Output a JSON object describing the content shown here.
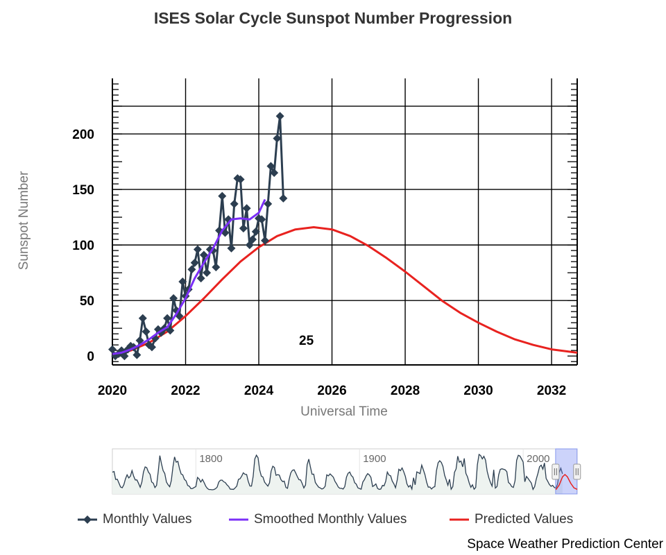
{
  "chart_data": {
    "type": "line",
    "title": "ISES Solar Cycle Sunspot Number Progression",
    "xlabel": "Universal Time",
    "ylabel": "Sunspot Number",
    "xlim": [
      2020,
      2032.7
    ],
    "ylim": [
      -8,
      250
    ],
    "x_ticks": [
      "2020",
      "2022",
      "2024",
      "2026",
      "2028",
      "2030",
      "2032"
    ],
    "y_ticks": [
      "0",
      "50",
      "100",
      "150",
      "200"
    ],
    "grid": true,
    "cycle_label": "25",
    "legend_position": "bottom",
    "series": [
      {
        "name": "Monthly Values",
        "color": "#2c3e50",
        "marker": "diamond",
        "x": [
          2020.0,
          2020.08,
          2020.17,
          2020.25,
          2020.33,
          2020.42,
          2020.5,
          2020.58,
          2020.67,
          2020.75,
          2020.83,
          2020.92,
          2021.0,
          2021.08,
          2021.17,
          2021.25,
          2021.33,
          2021.42,
          2021.5,
          2021.58,
          2021.67,
          2021.75,
          2021.83,
          2021.92,
          2022.0,
          2022.08,
          2022.17,
          2022.25,
          2022.33,
          2022.42,
          2022.5,
          2022.58,
          2022.67,
          2022.75,
          2022.83,
          2022.92,
          2023.0,
          2023.08,
          2023.17,
          2023.25,
          2023.33,
          2023.42,
          2023.5,
          2023.58,
          2023.67,
          2023.75,
          2023.83,
          2023.92,
          2024.0,
          2024.08,
          2024.17,
          2024.25,
          2024.33,
          2024.42,
          2024.5,
          2024.58,
          2024.67
        ],
        "values": [
          6,
          0,
          2,
          5,
          0,
          6,
          9,
          8,
          1,
          14,
          34,
          22,
          10,
          8,
          16,
          24,
          21,
          25,
          34,
          23,
          52,
          41,
          36,
          67,
          54,
          60,
          78,
          84,
          96,
          70,
          91,
          75,
          96,
          95,
          80,
          113,
          144,
          111,
          123,
          97,
          137,
          160,
          159,
          115,
          133,
          100,
          105,
          112,
          124,
          123,
          104,
          137,
          171,
          165,
          196,
          216,
          142
        ]
      },
      {
        "name": "Smoothed Monthly Values",
        "color": "#7b2ff7",
        "x": [
          2020.0,
          2020.25,
          2020.5,
          2020.75,
          2021.0,
          2021.25,
          2021.5,
          2021.75,
          2022.0,
          2022.25,
          2022.5,
          2022.75,
          2023.0,
          2023.25,
          2023.5,
          2023.75,
          2024.0,
          2024.17
        ],
        "values": [
          1.8,
          3,
          6,
          10,
          15,
          21,
          26,
          38,
          52,
          70,
          84,
          97,
          113,
          123,
          124,
          123,
          129,
          141
        ]
      },
      {
        "name": "Predicted Values",
        "color": "#e8221f",
        "x": [
          2020.0,
          2020.5,
          2021.0,
          2021.5,
          2022.0,
          2022.5,
          2023.0,
          2023.5,
          2024.0,
          2024.5,
          2025.0,
          2025.5,
          2026.0,
          2026.5,
          2027.0,
          2027.5,
          2028.0,
          2028.5,
          2029.0,
          2029.5,
          2030.0,
          2030.5,
          2031.0,
          2031.5,
          2032.0,
          2032.7
        ],
        "values": [
          1,
          5,
          12,
          22,
          36,
          52,
          69,
          85,
          98,
          108,
          114,
          116,
          114,
          108,
          99,
          88,
          76,
          63,
          50,
          39,
          30,
          22,
          15,
          10,
          6,
          3
        ]
      }
    ],
    "navigator": {
      "year_labels": [
        "1800",
        "1900",
        "2000"
      ],
      "xlim": [
        1749,
        2033
      ],
      "history_x": [
        1749,
        1750,
        1751,
        1752,
        1753,
        1754,
        1755,
        1756,
        1757,
        1758,
        1759,
        1760,
        1761,
        1762,
        1763,
        1764,
        1765,
        1766,
        1767,
        1768,
        1769,
        1770,
        1771,
        1772,
        1773,
        1774,
        1775,
        1776,
        1777,
        1778,
        1779,
        1780,
        1781,
        1782,
        1783,
        1784,
        1785,
        1786,
        1787,
        1788,
        1789,
        1790,
        1791,
        1792,
        1793,
        1794,
        1795,
        1796,
        1797,
        1798,
        1799,
        1800,
        1801,
        1802,
        1803,
        1804,
        1805,
        1806,
        1807,
        1808,
        1809,
        1810,
        1811,
        1812,
        1813,
        1814,
        1815,
        1816,
        1817,
        1818,
        1819,
        1820,
        1821,
        1822,
        1823,
        1824,
        1825,
        1826,
        1827,
        1828,
        1829,
        1830,
        1831,
        1832,
        1833,
        1834,
        1835,
        1836,
        1837,
        1838,
        1839,
        1840,
        1841,
        1842,
        1843,
        1844,
        1845,
        1846,
        1847,
        1848,
        1849,
        1850,
        1851,
        1852,
        1853,
        1854,
        1855,
        1856,
        1857,
        1858,
        1859,
        1860,
        1861,
        1862,
        1863,
        1864,
        1865,
        1866,
        1867,
        1868,
        1869,
        1870,
        1871,
        1872,
        1873,
        1874,
        1875,
        1876,
        1877,
        1878,
        1879,
        1880,
        1881,
        1882,
        1883,
        1884,
        1885,
        1886,
        1887,
        1888,
        1889,
        1890,
        1891,
        1892,
        1893,
        1894,
        1895,
        1896,
        1897,
        1898,
        1899,
        1900,
        1901,
        1902,
        1903,
        1904,
        1905,
        1906,
        1907,
        1908,
        1909,
        1910,
        1911,
        1912,
        1913,
        1914,
        1915,
        1916,
        1917,
        1918,
        1919,
        1920,
        1921,
        1922,
        1923,
        1924,
        1925,
        1926,
        1927,
        1928,
        1929,
        1930,
        1931,
        1932,
        1933,
        1934,
        1935,
        1936,
        1937,
        1938,
        1939,
        1940,
        1941,
        1942,
        1943,
        1944,
        1945,
        1946,
        1947,
        1948,
        1949,
        1950,
        1951,
        1952,
        1953,
        1954,
        1955,
        1956,
        1957,
        1958,
        1959,
        1960,
        1961,
        1962,
        1963,
        1964,
        1965,
        1966,
        1967,
        1968,
        1969,
        1970,
        1971,
        1972,
        1973,
        1974,
        1975,
        1976,
        1977,
        1978,
        1979,
        1980,
        1981,
        1982,
        1983,
        1984,
        1985,
        1986,
        1987,
        1988,
        1989,
        1990,
        1991,
        1992,
        1993,
        1994,
        1995,
        1996,
        1997,
        1998,
        1999,
        2000,
        2001,
        2002,
        2003,
        2004,
        2005,
        2006,
        2007,
        2008,
        2009,
        2010,
        2011,
        2012,
        2013,
        2014,
        2015,
        2016,
        2017,
        2018,
        2019,
        2020,
        2021,
        2022,
        2023,
        2024
      ],
      "history_values": [
        134,
        139,
        79,
        80,
        51,
        21,
        16,
        38,
        84,
        114,
        90,
        104,
        146,
        103,
        75,
        75,
        49,
        19,
        59,
        135,
        174,
        168,
        135,
        118,
        59,
        50,
        17,
        34,
        139,
        260,
        197,
        146,
        124,
        59,
        39,
        23,
        69,
        174,
        250,
        210,
        216,
        162,
        120,
        114,
        79,
        68,
        33,
        27,
        9,
        10,
        18,
        24,
        94,
        82,
        59,
        79,
        56,
        28,
        11,
        2,
        2,
        0,
        2,
        8,
        20,
        58,
        73,
        74,
        61,
        55,
        38,
        26,
        5,
        4,
        3,
        14,
        28,
        79,
        84,
        104,
        129,
        118,
        116,
        65,
        29,
        28,
        101,
        233,
        263,
        243,
        151,
        104,
        97,
        58,
        42,
        28,
        53,
        142,
        179,
        169,
        110,
        115,
        112,
        77,
        62,
        66,
        18,
        11,
        79,
        128,
        148,
        152,
        128,
        100,
        77,
        75,
        46,
        14,
        37,
        190,
        233,
        172,
        118,
        119,
        56,
        37,
        20,
        14,
        6,
        11,
        27,
        114,
        106,
        121,
        109,
        96,
        65,
        45,
        21,
        11,
        11,
        6,
        25,
        96,
        125,
        135,
        108,
        96,
        54,
        43,
        15,
        9,
        5,
        59,
        77,
        105,
        123,
        113,
        94,
        25,
        33,
        45,
        11,
        3,
        6,
        33,
        30,
        65,
        135,
        112,
        106,
        66,
        45,
        16,
        72,
        156,
        145,
        166,
        138,
        102,
        45,
        21,
        34,
        6,
        92,
        38,
        136,
        130,
        123,
        187,
        153,
        114,
        57,
        20,
        21,
        6,
        19,
        24,
        145,
        205,
        221,
        208,
        177,
        110,
        74,
        35,
        80,
        4,
        25,
        133,
        158,
        255,
        210,
        219,
        174,
        239,
        124,
        98,
        52,
        19,
        38,
        5,
        18,
        190,
        269,
        260,
        235,
        254,
        225,
        142,
        91,
        55,
        28,
        152,
        13,
        25,
        114,
        155,
        160,
        156,
        152,
        137,
        56,
        45,
        24,
        18,
        69,
        224,
        262,
        257,
        234,
        211,
        61,
        101,
        86,
        68,
        51,
        3,
        25,
        81,
        125,
        175,
        187,
        157,
        204,
        87,
        65,
        40,
        27,
        34,
        18,
        12,
        44,
        132,
        164,
        122,
        70,
        60,
        55,
        25,
        8,
        5,
        9,
        29,
        83,
        126,
        160
      ],
      "predicted_x": [
        2020,
        2022,
        2024,
        2025.5,
        2027,
        2029,
        2031,
        2033
      ],
      "predicted_values": [
        1,
        36,
        98,
        116,
        99,
        50,
        15,
        3
      ]
    }
  },
  "footer": {
    "credit": "Space Weather Prediction Center"
  }
}
